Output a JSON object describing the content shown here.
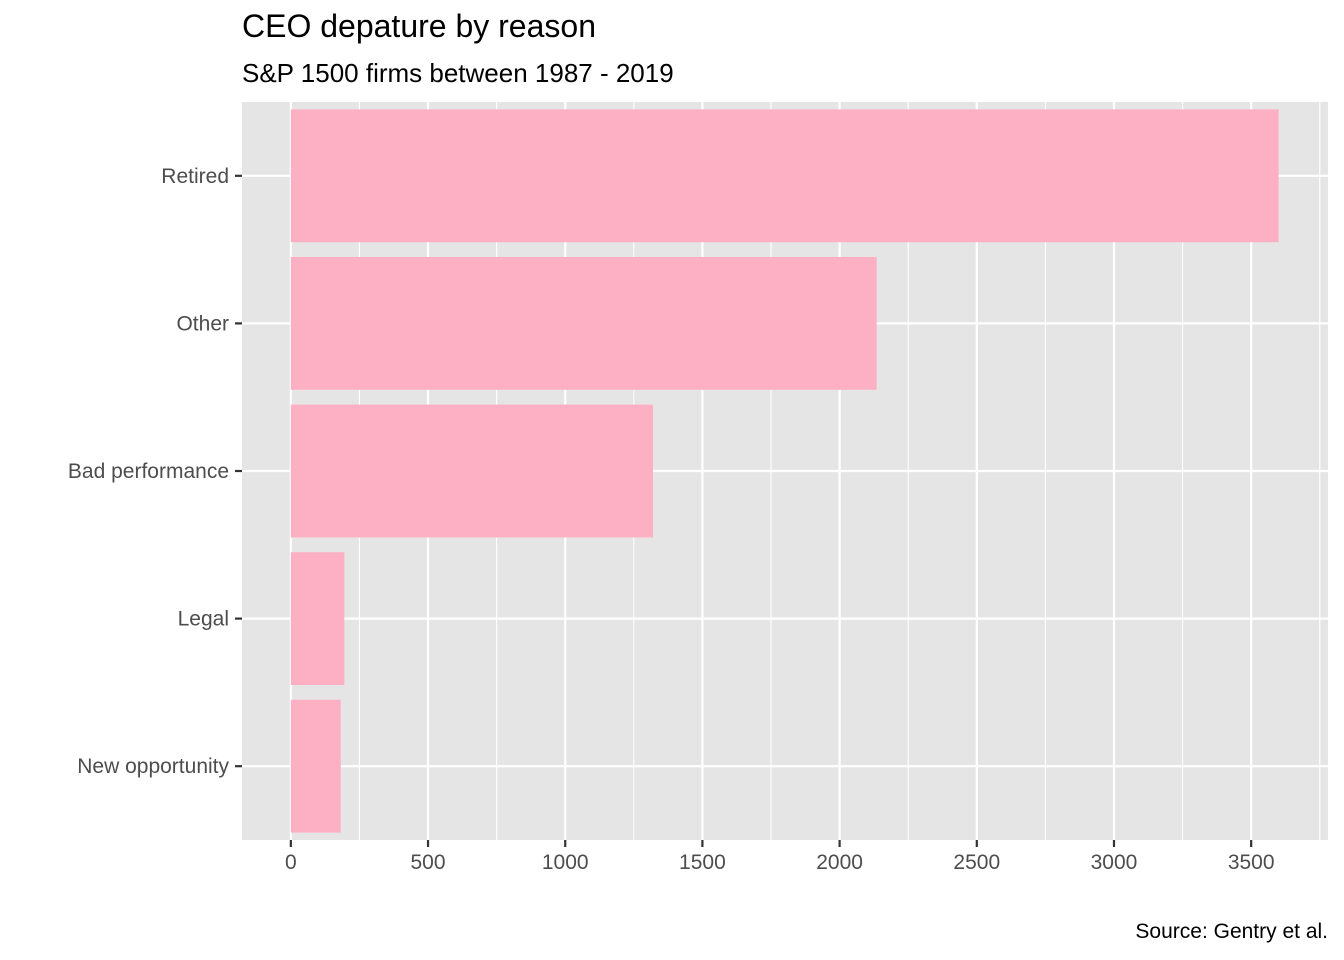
{
  "chart_data": {
    "type": "bar",
    "orientation": "horizontal",
    "title": "CEO depature by reason",
    "subtitle": "S&P 1500 firms between 1987 - 2019",
    "caption": "Source: Gentry et al.",
    "categories": [
      "Retired",
      "Other",
      "Bad performance",
      "Legal",
      "New opportunity"
    ],
    "values": [
      3600,
      2135,
      1320,
      195,
      182
    ],
    "xlabel": "",
    "ylabel": "",
    "xlim": [
      -178,
      3780
    ],
    "xticks": [
      0,
      500,
      1000,
      1500,
      2000,
      2500,
      3000,
      3500
    ],
    "grid": true,
    "legend": "none",
    "colors": {
      "bar": "#FDB0C3",
      "panel": "#E5E5E5",
      "grid": "#FFFFFF",
      "axis_text": "#4D4D4D",
      "tick": "#333333"
    }
  }
}
